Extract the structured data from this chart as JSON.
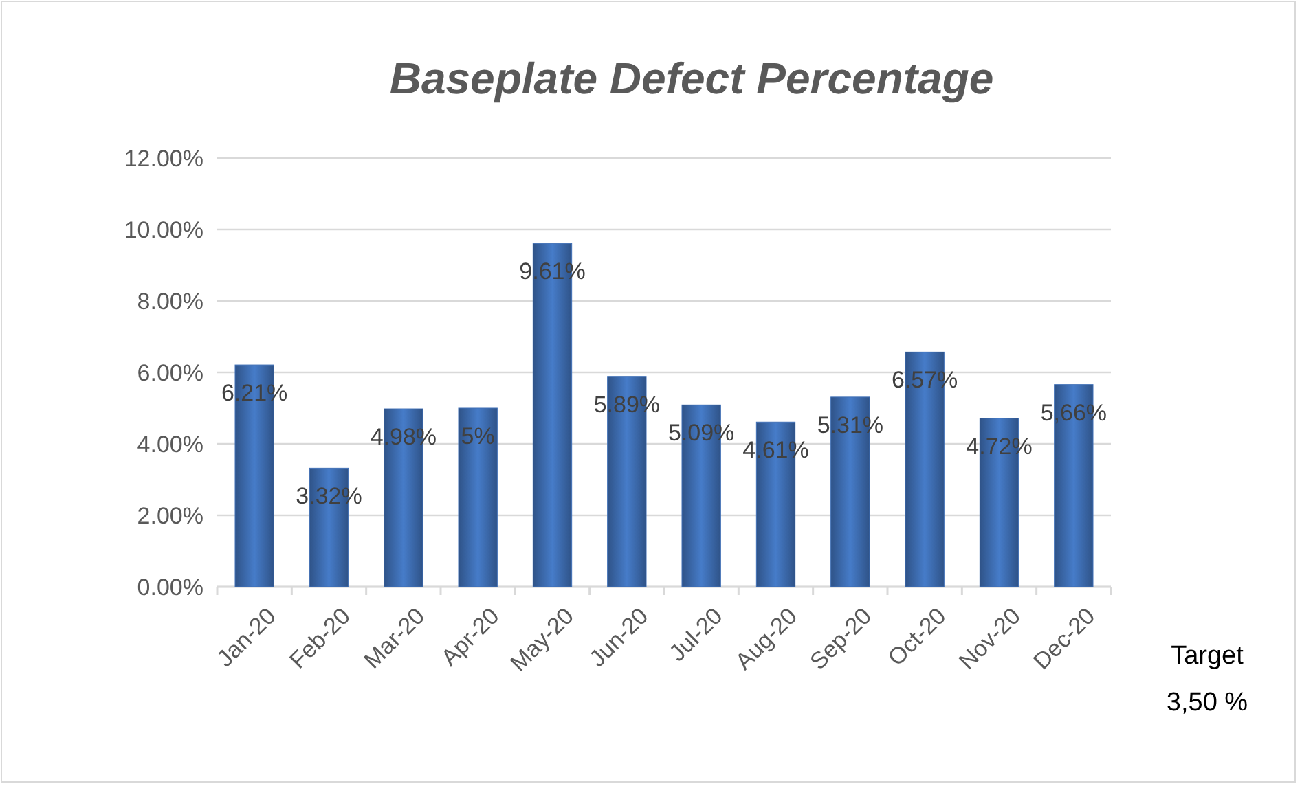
{
  "chart_data": {
    "type": "bar",
    "title": "Baseplate Defect Percentage",
    "categories": [
      "Jan-20",
      "Feb-20",
      "Mar-20",
      "Apr-20",
      "May-20",
      "Jun-20",
      "Jul-20",
      "Aug-20",
      "Sep-20",
      "Oct-20",
      "Nov-20",
      "Dec-20"
    ],
    "values": [
      6.21,
      3.32,
      4.98,
      5,
      9.61,
      5.89,
      5.09,
      4.61,
      5.31,
      6.57,
      4.72,
      5.66
    ],
    "value_labels": [
      "6.21%",
      "3.32%",
      "4.98%",
      "5%",
      "9.61%",
      "5.89%",
      "5.09%",
      "4.61%",
      "5.31%",
      "6.57%",
      "4.72%",
      "5,66%"
    ],
    "color": "#3f6fb5",
    "ylim": [
      0,
      12
    ],
    "yticks": [
      {
        "value": 0,
        "label": "0.00%"
      },
      {
        "value": 2,
        "label": "2.00%"
      },
      {
        "value": 4,
        "label": "4.00%"
      },
      {
        "value": 6,
        "label": "6.00%"
      },
      {
        "value": 8,
        "label": "8.00%"
      },
      {
        "value": 10,
        "label": "10.00%"
      },
      {
        "value": 12,
        "label": "12.00%"
      }
    ],
    "grid": "y",
    "annotations": [
      "Target\n3,50 %"
    ]
  }
}
